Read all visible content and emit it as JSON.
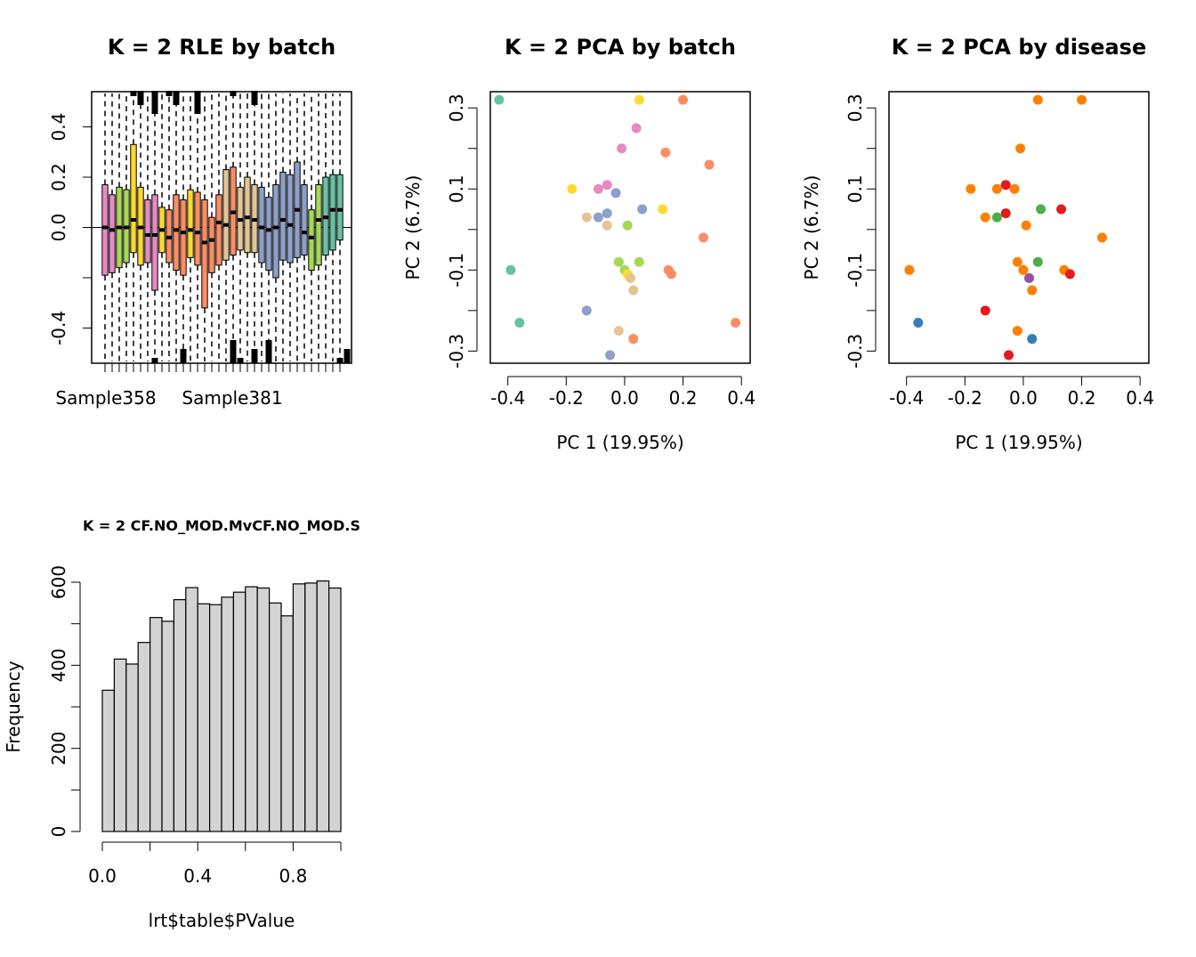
{
  "chart_data": [
    {
      "type": "boxplot",
      "title": "K = 2 RLE by batch",
      "ylim": [
        -0.54,
        0.54
      ],
      "yticks": [
        "-0.4",
        "0.0",
        "0.2",
        "0.4"
      ],
      "xtick_labels": [
        "Sample358",
        "Sample381"
      ],
      "grid": false,
      "boxes": [
        {
          "color": "#E78AC3",
          "q1": -0.19,
          "median": 0.0,
          "q3": 0.17
        },
        {
          "color": "#E78AC3",
          "q1": -0.18,
          "median": -0.01,
          "q3": 0.13
        },
        {
          "color": "#A6D854",
          "q1": -0.16,
          "median": 0.0,
          "q3": 0.16
        },
        {
          "color": "#A6D854",
          "q1": -0.14,
          "median": 0.0,
          "q3": 0.15
        },
        {
          "color": "#FFD92F",
          "q1": -0.1,
          "median": 0.03,
          "q3": 0.33
        },
        {
          "color": "#FFD92F",
          "q1": -0.15,
          "median": 0.0,
          "q3": 0.16
        },
        {
          "color": "#E78AC3",
          "q1": -0.14,
          "median": -0.03,
          "q3": 0.11
        },
        {
          "color": "#E78AC3",
          "q1": -0.25,
          "median": -0.03,
          "q3": 0.13
        },
        {
          "color": "#FFD92F",
          "q1": -0.1,
          "median": -0.01,
          "q3": 0.08
        },
        {
          "color": "#FC8D62",
          "q1": -0.14,
          "median": -0.04,
          "q3": 0.07
        },
        {
          "color": "#FC8D62",
          "q1": -0.17,
          "median": -0.01,
          "q3": 0.13
        },
        {
          "color": "#FC8D62",
          "q1": -0.19,
          "median": -0.02,
          "q3": 0.11
        },
        {
          "color": "#FFD92F",
          "q1": -0.12,
          "median": -0.01,
          "q3": 0.15
        },
        {
          "color": "#FC8D62",
          "q1": -0.15,
          "median": -0.02,
          "q3": 0.14
        },
        {
          "color": "#FC8D62",
          "q1": -0.32,
          "median": -0.06,
          "q3": 0.11
        },
        {
          "color": "#FC8D62",
          "q1": -0.18,
          "median": -0.05,
          "q3": 0.04
        },
        {
          "color": "#FC8D62",
          "q1": -0.15,
          "median": 0.02,
          "q3": 0.13
        },
        {
          "color": "#E5C494",
          "q1": -0.13,
          "median": 0.01,
          "q3": 0.23
        },
        {
          "color": "#FC8D62",
          "q1": -0.11,
          "median": 0.06,
          "q3": 0.24
        },
        {
          "color": "#E5C494",
          "q1": -0.09,
          "median": 0.03,
          "q3": 0.16
        },
        {
          "color": "#E5C494",
          "q1": -0.1,
          "median": 0.04,
          "q3": 0.2
        },
        {
          "color": "#E5C494",
          "q1": -0.1,
          "median": 0.03,
          "q3": 0.17
        },
        {
          "color": "#8DA0CB",
          "q1": -0.14,
          "median": 0.0,
          "q3": 0.16
        },
        {
          "color": "#8DA0CB",
          "q1": -0.17,
          "median": -0.01,
          "q3": 0.12
        },
        {
          "color": "#8DA0CB",
          "q1": -0.2,
          "median": 0.0,
          "q3": 0.17
        },
        {
          "color": "#8DA0CB",
          "q1": -0.13,
          "median": 0.03,
          "q3": 0.22
        },
        {
          "color": "#8DA0CB",
          "q1": -0.14,
          "median": 0.01,
          "q3": 0.21
        },
        {
          "color": "#8DA0CB",
          "q1": -0.12,
          "median": 0.07,
          "q3": 0.26
        },
        {
          "color": "#8DA0CB",
          "q1": -0.11,
          "median": -0.02,
          "q3": 0.17
        },
        {
          "color": "#A6D854",
          "q1": -0.17,
          "median": -0.04,
          "q3": 0.07
        },
        {
          "color": "#A6D854",
          "q1": -0.15,
          "median": 0.03,
          "q3": 0.17
        },
        {
          "color": "#66C2A5",
          "q1": -0.11,
          "median": 0.04,
          "q3": 0.2
        },
        {
          "color": "#66C2A5",
          "q1": -0.09,
          "median": 0.07,
          "q3": 0.21
        },
        {
          "color": "#66C2A5",
          "q1": -0.05,
          "median": 0.07,
          "q3": 0.21
        }
      ]
    },
    {
      "type": "scatter",
      "title": "K = 2 PCA by batch",
      "xlabel": "PC 1 (19.95%)",
      "ylabel": "PC 2 (6.7%)",
      "xlim": [
        -0.46,
        0.43
      ],
      "ylim": [
        -0.33,
        0.34
      ],
      "xticks": [
        -0.4,
        -0.2,
        0.0,
        0.2,
        0.4
      ],
      "xtick_labels": [
        "-0.4",
        "-0.2",
        "0.0",
        "0.2",
        "0.4"
      ],
      "yticks": [
        0.3,
        0.1,
        -0.1,
        -0.3
      ],
      "ytick_labels": [
        "0.3",
        "0.1",
        "-0.1",
        "-0.3"
      ],
      "points": [
        {
          "x": -0.43,
          "y": 0.32,
          "color": "#66C2A5"
        },
        {
          "x": 0.05,
          "y": 0.32,
          "color": "#FFD92F"
        },
        {
          "x": 0.2,
          "y": 0.32,
          "color": "#FC8D62"
        },
        {
          "x": 0.04,
          "y": 0.25,
          "color": "#E78AC3"
        },
        {
          "x": -0.01,
          "y": 0.2,
          "color": "#E78AC3"
        },
        {
          "x": 0.14,
          "y": 0.19,
          "color": "#FC8D62"
        },
        {
          "x": 0.29,
          "y": 0.16,
          "color": "#FC8D62"
        },
        {
          "x": -0.06,
          "y": 0.11,
          "color": "#E78AC3"
        },
        {
          "x": -0.18,
          "y": 0.1,
          "color": "#FFD92F"
        },
        {
          "x": -0.09,
          "y": 0.1,
          "color": "#E78AC3"
        },
        {
          "x": -0.03,
          "y": 0.09,
          "color": "#8DA0CB"
        },
        {
          "x": 0.06,
          "y": 0.05,
          "color": "#8DA0CB"
        },
        {
          "x": 0.13,
          "y": 0.05,
          "color": "#FFD92F"
        },
        {
          "x": -0.06,
          "y": 0.04,
          "color": "#8DA0CB"
        },
        {
          "x": -0.13,
          "y": 0.03,
          "color": "#E5C494"
        },
        {
          "x": -0.09,
          "y": 0.03,
          "color": "#8DA0CB"
        },
        {
          "x": -0.06,
          "y": 0.01,
          "color": "#E5C494"
        },
        {
          "x": 0.01,
          "y": 0.01,
          "color": "#A6D854"
        },
        {
          "x": 0.27,
          "y": -0.02,
          "color": "#FC8D62"
        },
        {
          "x": -0.02,
          "y": -0.08,
          "color": "#A6D854"
        },
        {
          "x": 0.05,
          "y": -0.08,
          "color": "#A6D854"
        },
        {
          "x": -0.39,
          "y": -0.1,
          "color": "#66C2A5"
        },
        {
          "x": 0.0,
          "y": -0.1,
          "color": "#A6D854"
        },
        {
          "x": 0.01,
          "y": -0.11,
          "color": "#FFD92F"
        },
        {
          "x": 0.15,
          "y": -0.1,
          "color": "#FC8D62"
        },
        {
          "x": 0.16,
          "y": -0.11,
          "color": "#FC8D62"
        },
        {
          "x": 0.02,
          "y": -0.12,
          "color": "#E5C494"
        },
        {
          "x": 0.03,
          "y": -0.15,
          "color": "#E5C494"
        },
        {
          "x": -0.13,
          "y": -0.2,
          "color": "#8DA0CB"
        },
        {
          "x": -0.36,
          "y": -0.23,
          "color": "#66C2A5"
        },
        {
          "x": 0.38,
          "y": -0.23,
          "color": "#FC8D62"
        },
        {
          "x": -0.02,
          "y": -0.25,
          "color": "#E5C494"
        },
        {
          "x": 0.03,
          "y": -0.27,
          "color": "#FC8D62"
        },
        {
          "x": -0.05,
          "y": -0.31,
          "color": "#8DA0CB"
        }
      ]
    },
    {
      "type": "scatter",
      "title": "K = 2 PCA by disease",
      "xlabel": "PC 1 (19.95%)",
      "ylabel": "PC 2 (6.7%)",
      "xlim": [
        -0.46,
        0.43
      ],
      "ylim": [
        -0.33,
        0.34
      ],
      "xticks": [
        -0.4,
        -0.2,
        0.0,
        0.2,
        0.4
      ],
      "xtick_labels": [
        "-0.4",
        "-0.2",
        "0.0",
        "0.2",
        "0.4"
      ],
      "yticks": [
        0.3,
        0.1,
        -0.1,
        -0.3
      ],
      "ytick_labels": [
        "0.3",
        "0.1",
        "-0.1",
        "-0.3"
      ],
      "points": [
        {
          "x": 0.05,
          "y": 0.32,
          "color": "#FF7F00"
        },
        {
          "x": 0.2,
          "y": 0.32,
          "color": "#FF7F00"
        },
        {
          "x": -0.01,
          "y": 0.2,
          "color": "#FF7F00"
        },
        {
          "x": -0.06,
          "y": 0.11,
          "color": "#E41A1C"
        },
        {
          "x": -0.18,
          "y": 0.1,
          "color": "#FF7F00"
        },
        {
          "x": -0.09,
          "y": 0.1,
          "color": "#FF7F00"
        },
        {
          "x": -0.03,
          "y": 0.1,
          "color": "#FF7F00"
        },
        {
          "x": 0.13,
          "y": 0.05,
          "color": "#E41A1C"
        },
        {
          "x": 0.06,
          "y": 0.05,
          "color": "#4DAF4A"
        },
        {
          "x": -0.06,
          "y": 0.04,
          "color": "#E41A1C"
        },
        {
          "x": -0.13,
          "y": 0.03,
          "color": "#FF7F00"
        },
        {
          "x": -0.09,
          "y": 0.03,
          "color": "#4DAF4A"
        },
        {
          "x": 0.01,
          "y": 0.01,
          "color": "#FF7F00"
        },
        {
          "x": 0.27,
          "y": -0.02,
          "color": "#FF7F00"
        },
        {
          "x": -0.02,
          "y": -0.08,
          "color": "#FF7F00"
        },
        {
          "x": 0.05,
          "y": -0.08,
          "color": "#4DAF4A"
        },
        {
          "x": -0.39,
          "y": -0.1,
          "color": "#FF7F00"
        },
        {
          "x": 0.0,
          "y": -0.1,
          "color": "#FF7F00"
        },
        {
          "x": 0.14,
          "y": -0.1,
          "color": "#FF7F00"
        },
        {
          "x": 0.16,
          "y": -0.11,
          "color": "#E41A1C"
        },
        {
          "x": 0.02,
          "y": -0.12,
          "color": "#984EA3"
        },
        {
          "x": 0.03,
          "y": -0.15,
          "color": "#FF7F00"
        },
        {
          "x": -0.13,
          "y": -0.2,
          "color": "#E41A1C"
        },
        {
          "x": -0.36,
          "y": -0.23,
          "color": "#377EB8"
        },
        {
          "x": -0.02,
          "y": -0.25,
          "color": "#FF7F00"
        },
        {
          "x": 0.03,
          "y": -0.27,
          "color": "#377EB8"
        },
        {
          "x": -0.05,
          "y": -0.31,
          "color": "#E41A1C"
        }
      ]
    },
    {
      "type": "bar",
      "title": "K = 2 CF.NO_MOD.MvCF.NO_MOD.S",
      "xlabel": "lrt$table$PValue",
      "ylabel": "Frequency",
      "xlim": [
        -0.04,
        1.0
      ],
      "ylim": [
        0,
        640
      ],
      "bin_width": 0.05,
      "bin_starts": [
        0.0,
        0.05,
        0.1,
        0.15,
        0.2,
        0.25,
        0.3,
        0.35,
        0.4,
        0.45,
        0.5,
        0.55,
        0.6,
        0.65,
        0.7,
        0.75,
        0.8,
        0.85,
        0.9,
        0.95
      ],
      "values": [
        340,
        415,
        403,
        455,
        515,
        506,
        558,
        587,
        548,
        546,
        564,
        576,
        589,
        586,
        550,
        519,
        596,
        598,
        603,
        586
      ],
      "xticks": [
        0.0,
        0.2,
        0.4,
        0.6,
        0.8,
        1.0
      ],
      "xtick_labels": [
        "0.0",
        "0.4",
        "0.8"
      ],
      "xtick_label_values": [
        0.0,
        0.4,
        0.8
      ],
      "yticks": [
        0,
        100,
        200,
        300,
        400,
        500,
        600
      ],
      "ytick_labels": [
        "0",
        "200",
        "400",
        "600"
      ],
      "ytick_label_values": [
        0,
        200,
        400,
        600
      ],
      "bar_color": "#D3D3D3"
    }
  ]
}
